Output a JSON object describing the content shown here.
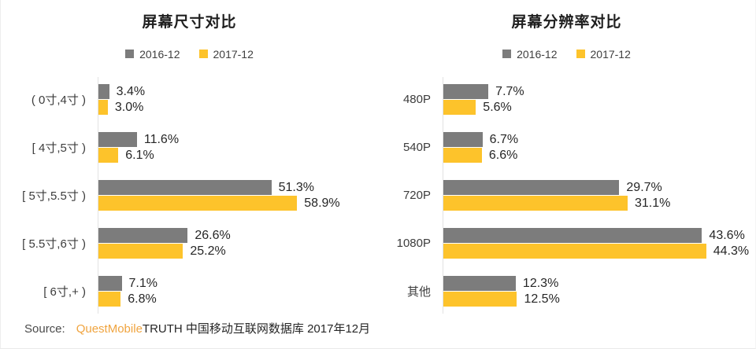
{
  "page": {
    "background": "#ffffff"
  },
  "colors": {
    "series_2016": "#7c7c7c",
    "series_2017": "#fdc32b",
    "axis_line": "#e2e2e2",
    "brand_orange": "#f0a43f"
  },
  "source": {
    "label": "Source:",
    "brand": "QuestMobile",
    "rest": "TRUTH 中国移动互联网数据库 2017年12月"
  },
  "chart_data": [
    {
      "type": "bar",
      "orientation": "horizontal",
      "title": "屏幕尺寸对比",
      "categories": [
        "( 0寸,4寸 )",
        "[ 4寸,5寸 )",
        "[ 5寸,5.5寸 )",
        "[ 5.5寸,6寸 )",
        "[ 6寸,+ )"
      ],
      "series": [
        {
          "name": "2016-12",
          "color": "#7c7c7c",
          "values": [
            3.4,
            11.6,
            51.3,
            26.6,
            7.1
          ]
        },
        {
          "name": "2017-12",
          "color": "#fdc32b",
          "values": [
            3.0,
            6.1,
            58.9,
            25.2,
            6.8
          ]
        }
      ],
      "value_suffix": "%",
      "xlim": [
        0,
        60
      ],
      "grid": false,
      "legend_position": "top",
      "value_labels_2016": [
        "3.4%",
        "11.6%",
        "51.3%",
        "26.6%",
        "7.1%"
      ],
      "value_labels_2017": [
        "3.0%",
        "6.1%",
        "58.9%",
        "25.2%",
        "6.8%"
      ]
    },
    {
      "type": "bar",
      "orientation": "horizontal",
      "title": "屏幕分辨率对比",
      "categories": [
        "480P",
        "540P",
        "720P",
        "1080P",
        "其他"
      ],
      "series": [
        {
          "name": "2016-12",
          "color": "#7c7c7c",
          "values": [
            7.7,
            6.7,
            29.7,
            43.6,
            12.3
          ]
        },
        {
          "name": "2017-12",
          "color": "#fdc32b",
          "values": [
            5.6,
            6.6,
            31.1,
            44.3,
            12.5
          ]
        }
      ],
      "value_suffix": "%",
      "xlim": [
        0,
        45
      ],
      "grid": false,
      "legend_position": "top",
      "value_labels_2016": [
        "7.7%",
        "6.7%",
        "29.7%",
        "43.6%",
        "12.3%"
      ],
      "value_labels_2017": [
        "5.6%",
        "6.6%",
        "31.1%",
        "44.3%",
        "12.5%"
      ]
    }
  ]
}
